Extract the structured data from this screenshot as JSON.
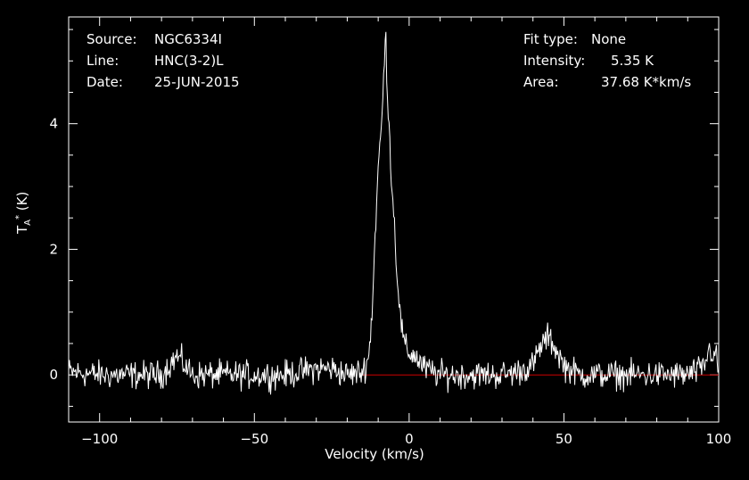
{
  "header": {
    "source_label": "Source:",
    "source_value": "NGC6334I",
    "line_label": "Line:",
    "line_value": "HNC(3-2)L",
    "date_label": "Date:",
    "date_value": "25-JUN-2015",
    "fit_label": "Fit type:",
    "fit_value": "None",
    "intensity_label": "Intensity:",
    "intensity_value": "5.35 K",
    "area_label": "Area:",
    "area_value": "37.68 K*km/s"
  },
  "chart_data": {
    "type": "line",
    "xlabel": "Velocity (km/s)",
    "ylabel": "TA* (K)",
    "xlim": [
      -110,
      100
    ],
    "ylim": [
      -0.75,
      5.7
    ],
    "xticks": [
      -100,
      -50,
      0,
      50,
      100
    ],
    "yticks": [
      0,
      2,
      4
    ],
    "baseline_color": "#cc0000",
    "line_color": "#ffffff",
    "series": [
      {
        "x": [
          -110,
          -100,
          -90,
          -80,
          -75,
          -70,
          -60,
          -50,
          -40,
          -30,
          -25,
          -20,
          -15,
          -13,
          -12,
          -11,
          -10,
          -9,
          -8,
          -7.5,
          -7,
          -6.5,
          -6,
          -5,
          -4,
          -3,
          -2,
          -1,
          0,
          2,
          5,
          10,
          20,
          30,
          35,
          40,
          43,
          45,
          47,
          50,
          55,
          60,
          70,
          80,
          90,
          95,
          97,
          99,
          100
        ],
        "y": [
          0.05,
          0.0,
          0.0,
          0.0,
          0.3,
          0.0,
          0.0,
          0.0,
          0.0,
          0.1,
          0.1,
          0.0,
          0.05,
          0.3,
          1.0,
          2.2,
          3.3,
          3.9,
          5.0,
          5.35,
          4.5,
          4.0,
          3.4,
          2.6,
          1.7,
          1.0,
          0.6,
          0.4,
          0.35,
          0.3,
          0.1,
          0.0,
          0.0,
          0.0,
          0.05,
          0.15,
          0.5,
          0.6,
          0.45,
          0.15,
          0.0,
          0.0,
          0.0,
          0.0,
          0.0,
          0.1,
          0.4,
          0.3,
          0.05
        ]
      }
    ]
  }
}
